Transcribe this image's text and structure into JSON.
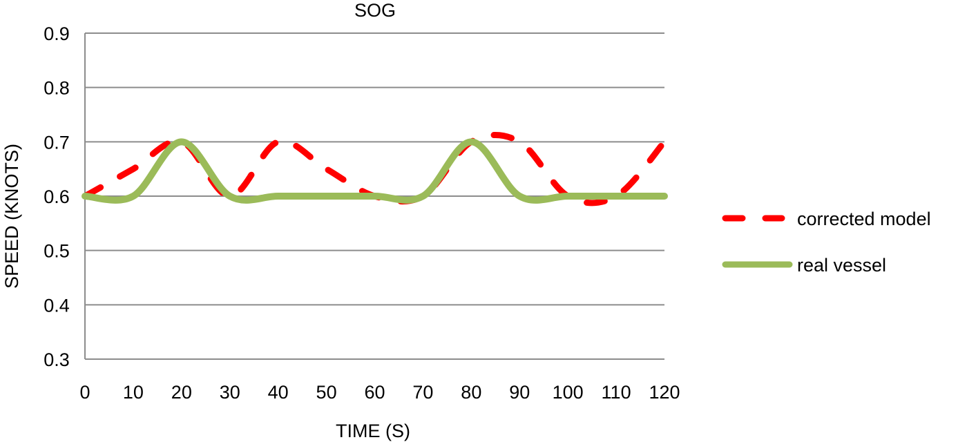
{
  "chart_data": {
    "type": "line",
    "title": "SOG",
    "xlabel": "TIME (S)",
    "ylabel": "SPEED (KNOTS)",
    "xlim": [
      0,
      120
    ],
    "ylim": [
      0.3,
      0.9
    ],
    "x_ticks": [
      "0",
      "10",
      "20",
      "30",
      "40",
      "50",
      "60",
      "70",
      "80",
      "90",
      "100",
      "110",
      "120"
    ],
    "y_ticks": [
      "0.3",
      "0.4",
      "0.5",
      "0.6",
      "0.7",
      "0.8",
      "0.9"
    ],
    "grid": true,
    "legend_position": "right",
    "x": [
      0,
      10,
      20,
      30,
      40,
      50,
      60,
      70,
      80,
      90,
      100,
      110,
      120
    ],
    "series": [
      {
        "name": "corrected model",
        "style": "dashed",
        "color": "#ff0000",
        "values": [
          0.6,
          0.65,
          0.7,
          0.6,
          0.7,
          0.65,
          0.6,
          0.6,
          0.7,
          0.7,
          0.6,
          0.6,
          0.7
        ]
      },
      {
        "name": "real vessel",
        "style": "solid",
        "color": "#9bbb59",
        "values": [
          0.6,
          0.6,
          0.7,
          0.6,
          0.6,
          0.6,
          0.6,
          0.6,
          0.7,
          0.6,
          0.6,
          0.6,
          0.6
        ]
      }
    ]
  }
}
